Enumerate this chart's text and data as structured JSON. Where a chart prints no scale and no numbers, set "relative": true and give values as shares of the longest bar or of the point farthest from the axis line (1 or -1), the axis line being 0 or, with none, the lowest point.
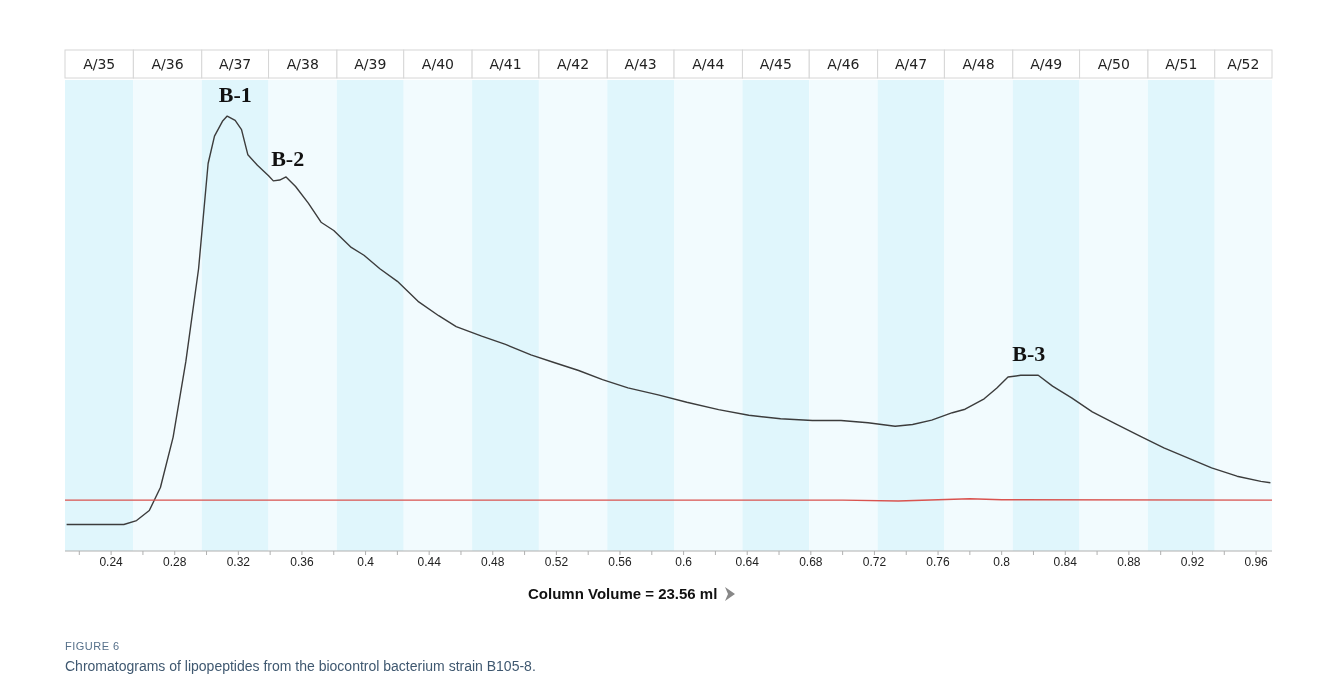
{
  "chart_data": {
    "type": "line",
    "title": "FIGURE 6",
    "xlabel": "Column Volume  = 23.56 ml",
    "relative": true,
    "marker": "none",
    "line_style": "solid",
    "xlim": [
      0.211,
      0.97
    ],
    "xticks": [
      {
        "value": 0.22,
        "label": null
      },
      0.24,
      {
        "value": 0.26,
        "label": null
      },
      0.28,
      {
        "value": 0.3,
        "label": null
      },
      0.32,
      {
        "value": 0.34,
        "label": null
      },
      0.36,
      {
        "value": 0.38,
        "label": null
      },
      0.4,
      {
        "value": 0.42,
        "label": null
      },
      0.44,
      {
        "value": 0.46,
        "label": null
      },
      0.48,
      {
        "value": 0.5,
        "label": null
      },
      0.52,
      {
        "value": 0.54,
        "label": null
      },
      0.56,
      {
        "value": 0.58,
        "label": null
      },
      0.6,
      {
        "value": 0.62,
        "label": null
      },
      0.64,
      {
        "value": 0.66,
        "label": null
      },
      0.68,
      {
        "value": 0.7,
        "label": null
      },
      0.72,
      {
        "value": 0.74,
        "label": null
      },
      0.76,
      {
        "value": 0.78,
        "label": null
      },
      0.8,
      {
        "value": 0.82,
        "label": null
      },
      0.84,
      {
        "value": 0.86,
        "label": null
      },
      0.88,
      {
        "value": 0.9,
        "label": null
      },
      0.92,
      {
        "value": 0.94,
        "label": null
      },
      0.96
    ],
    "series": [
      {
        "color": "#3c3c3c",
        "x": [
          0.212,
          0.248,
          0.256,
          0.264,
          0.271,
          0.279,
          0.287,
          0.295,
          0.301,
          0.305,
          0.31,
          0.313,
          0.318,
          0.322,
          0.326,
          0.332,
          0.339,
          0.342,
          0.346,
          0.35,
          0.356,
          0.364,
          0.372,
          0.38,
          0.391,
          0.399,
          0.409,
          0.42,
          0.433,
          0.446,
          0.457,
          0.473,
          0.488,
          0.504,
          0.518,
          0.534,
          0.549,
          0.565,
          0.584,
          0.602,
          0.622,
          0.641,
          0.661,
          0.681,
          0.699,
          0.716,
          0.733,
          0.744,
          0.756,
          0.769,
          0.777,
          0.789,
          0.797,
          0.804,
          0.812,
          0.823,
          0.832,
          0.844,
          0.857,
          0.872,
          0.887,
          0.902,
          0.917,
          0.932,
          0.948,
          0.963,
          0.969
        ],
        "values": [
          0.061,
          0.061,
          0.07,
          0.093,
          0.146,
          0.262,
          0.436,
          0.649,
          0.891,
          0.954,
          0.988,
          1.0,
          0.99,
          0.969,
          0.911,
          0.887,
          0.863,
          0.851,
          0.853,
          0.86,
          0.838,
          0.8,
          0.756,
          0.737,
          0.698,
          0.68,
          0.649,
          0.62,
          0.574,
          0.541,
          0.516,
          0.494,
          0.475,
          0.451,
          0.434,
          0.415,
          0.394,
          0.375,
          0.359,
          0.342,
          0.325,
          0.312,
          0.304,
          0.3,
          0.3,
          0.295,
          0.287,
          0.291,
          0.301,
          0.318,
          0.326,
          0.35,
          0.375,
          0.4,
          0.404,
          0.404,
          0.379,
          0.352,
          0.32,
          0.292,
          0.264,
          0.237,
          0.214,
          0.191,
          0.172,
          0.16,
          0.157
        ]
      },
      {
        "color": "#d9534f",
        "x": [
          0.211,
          0.7,
          0.735,
          0.76,
          0.78,
          0.8,
          0.97
        ],
        "values": [
          0.117,
          0.117,
          0.115,
          0.118,
          0.12,
          0.118,
          0.117
        ]
      }
    ],
    "bands": [
      {
        "axis": "x",
        "from": 0.211,
        "to": 0.254,
        "label": "A/35",
        "color": "#e0f6fc"
      },
      {
        "axis": "x",
        "from": 0.254,
        "to": 0.297,
        "label": "A/36",
        "color": "#f2fbfe"
      },
      {
        "axis": "x",
        "from": 0.297,
        "to": 0.339,
        "label": "A/37",
        "color": "#e0f6fc"
      },
      {
        "axis": "x",
        "from": 0.339,
        "to": 0.382,
        "label": "A/38",
        "color": "#f2fbfe"
      },
      {
        "axis": "x",
        "from": 0.382,
        "to": 0.424,
        "label": "A/39",
        "color": "#e0f6fc"
      },
      {
        "axis": "x",
        "from": 0.424,
        "to": 0.467,
        "label": "A/40",
        "color": "#f2fbfe"
      },
      {
        "axis": "x",
        "from": 0.467,
        "to": 0.509,
        "label": "A/41",
        "color": "#e0f6fc"
      },
      {
        "axis": "x",
        "from": 0.509,
        "to": 0.552,
        "label": "A/42",
        "color": "#f2fbfe"
      },
      {
        "axis": "x",
        "from": 0.552,
        "to": 0.594,
        "label": "A/43",
        "color": "#e0f6fc"
      },
      {
        "axis": "x",
        "from": 0.594,
        "to": 0.637,
        "label": "A/44",
        "color": "#f2fbfe"
      },
      {
        "axis": "x",
        "from": 0.637,
        "to": 0.679,
        "label": "A/45",
        "color": "#e0f6fc"
      },
      {
        "axis": "x",
        "from": 0.679,
        "to": 0.722,
        "label": "A/46",
        "color": "#f2fbfe"
      },
      {
        "axis": "x",
        "from": 0.722,
        "to": 0.764,
        "label": "A/47",
        "color": "#e0f6fc"
      },
      {
        "axis": "x",
        "from": 0.764,
        "to": 0.807,
        "label": "A/48",
        "color": "#f2fbfe"
      },
      {
        "axis": "x",
        "from": 0.807,
        "to": 0.849,
        "label": "A/49",
        "color": "#e0f6fc"
      },
      {
        "axis": "x",
        "from": 0.849,
        "to": 0.892,
        "label": "A/50",
        "color": "#f2fbfe"
      },
      {
        "axis": "x",
        "from": 0.892,
        "to": 0.934,
        "label": "A/51",
        "color": "#e0f6fc"
      },
      {
        "axis": "x",
        "from": 0.934,
        "to": 0.97,
        "label": "A/52",
        "color": "#f2fbfe"
      }
    ],
    "annotations": [
      {
        "text": "B-1",
        "x": 0.313,
        "y": 1.0
      },
      {
        "text": "B-2",
        "x": 0.346,
        "y": 0.853
      },
      {
        "text": "B-3",
        "x": 0.812,
        "y": 0.404
      },
      "Chromatograms of lipopeptides from the biocontrol bacterium strain B105-8."
    ]
  }
}
